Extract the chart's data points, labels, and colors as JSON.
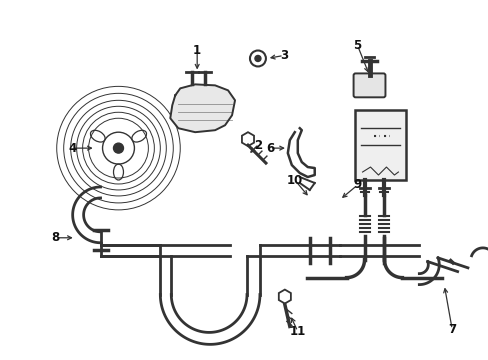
{
  "bg_color": "#ffffff",
  "line_color": "#333333",
  "label_color": "#111111",
  "figsize": [
    4.89,
    3.6
  ],
  "dpi": 100,
  "lw": 1.4,
  "lw_thick": 1.8
}
